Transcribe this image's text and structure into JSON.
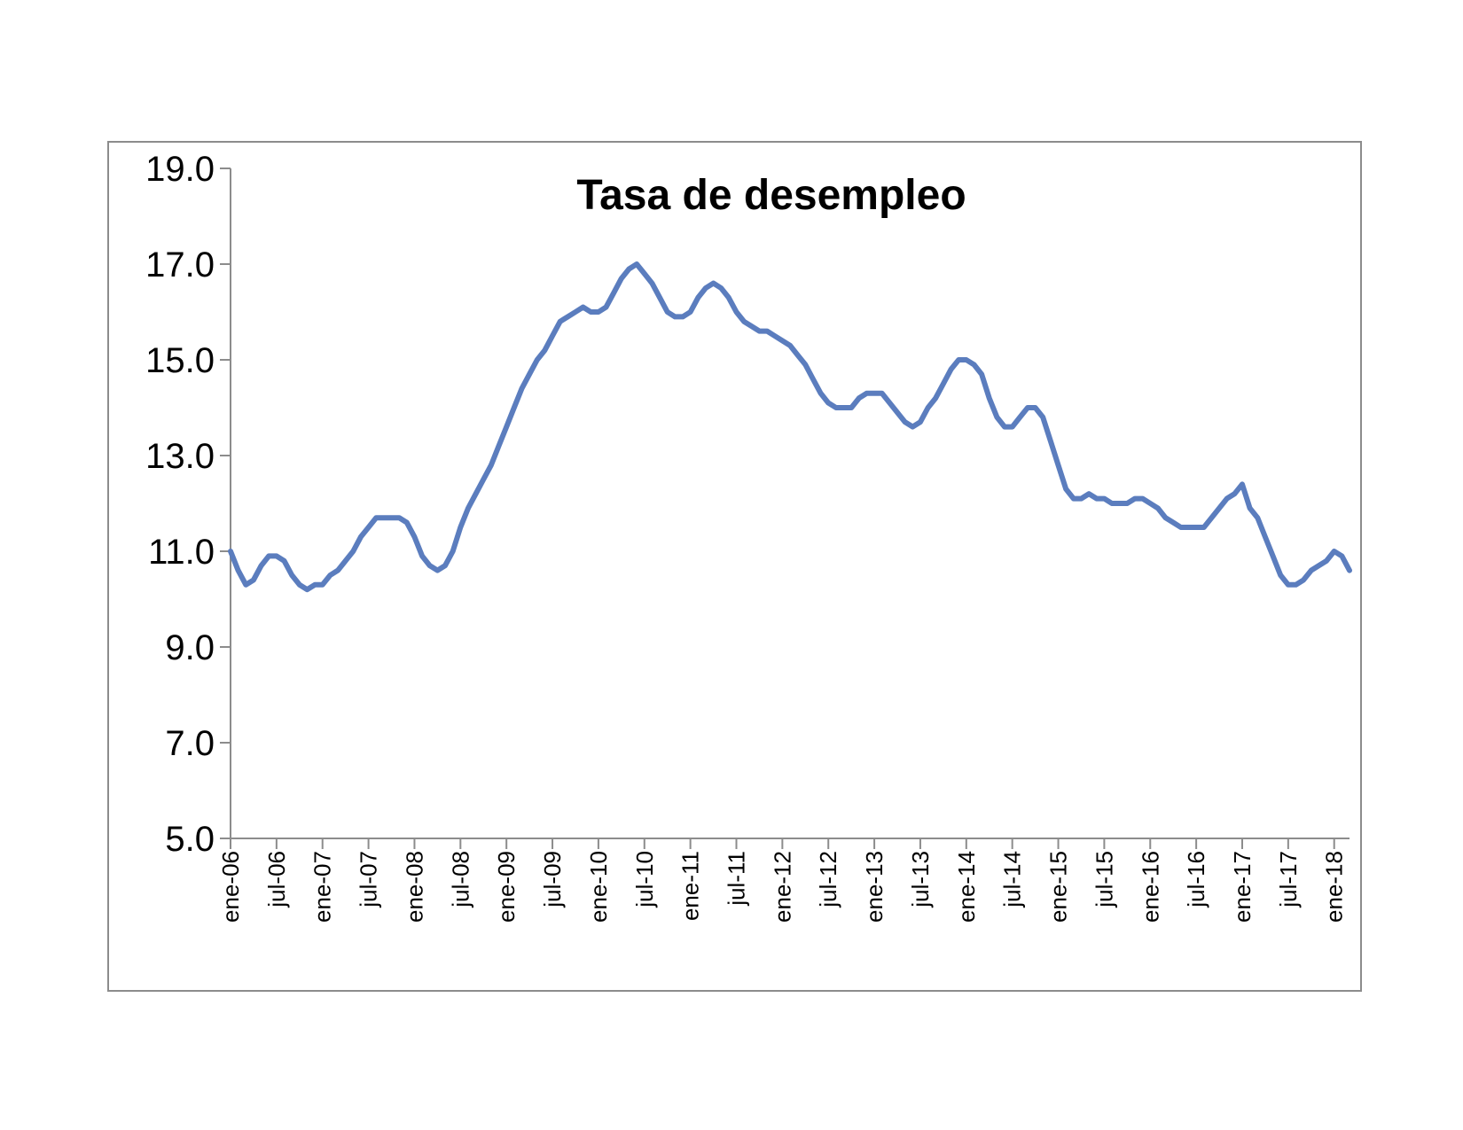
{
  "chart_data": {
    "type": "line",
    "title": "Tasa de desempleo",
    "xlabel": "",
    "ylabel": "",
    "ylim": [
      5,
      19
    ],
    "yticks": [
      "5.0",
      "7.0",
      "9.0",
      "11.0",
      "13.0",
      "15.0",
      "17.0",
      "19.0"
    ],
    "ytick_values": [
      5,
      7,
      9,
      11,
      13,
      15,
      17,
      19
    ],
    "xticks": [
      "ene-06",
      "jul-06",
      "ene-07",
      "jul-07",
      "ene-08",
      "jul-08",
      "ene-09",
      "jul-09",
      "ene-10",
      "jul-10",
      "ene-11",
      "jul-11",
      "ene-12",
      "jul-12",
      "ene-13",
      "jul-13",
      "ene-14",
      "jul-14",
      "ene-15",
      "jul-15",
      "ene-16",
      "jul-16",
      "ene-17",
      "jul-17",
      "ene-18"
    ],
    "x_start": "ene-06",
    "x_end": "mar-18",
    "grid": false,
    "legend": "none",
    "series": [
      {
        "color": "#5b7dbe",
        "points": [
          [
            "2006-01",
            11.0
          ],
          [
            "2006-02",
            10.6
          ],
          [
            "2006-03",
            10.3
          ],
          [
            "2006-04",
            10.4
          ],
          [
            "2006-05",
            10.7
          ],
          [
            "2006-06",
            10.9
          ],
          [
            "2006-07",
            10.9
          ],
          [
            "2006-08",
            10.8
          ],
          [
            "2006-09",
            10.5
          ],
          [
            "2006-10",
            10.3
          ],
          [
            "2006-11",
            10.2
          ],
          [
            "2006-12",
            10.3
          ],
          [
            "2007-01",
            10.3
          ],
          [
            "2007-02",
            10.5
          ],
          [
            "2007-03",
            10.6
          ],
          [
            "2007-04",
            10.8
          ],
          [
            "2007-05",
            11.0
          ],
          [
            "2007-06",
            11.3
          ],
          [
            "2007-07",
            11.5
          ],
          [
            "2007-08",
            11.7
          ],
          [
            "2007-09",
            11.7
          ],
          [
            "2007-10",
            11.7
          ],
          [
            "2007-11",
            11.7
          ],
          [
            "2007-12",
            11.6
          ],
          [
            "2008-01",
            11.3
          ],
          [
            "2008-02",
            10.9
          ],
          [
            "2008-03",
            10.7
          ],
          [
            "2008-04",
            10.6
          ],
          [
            "2008-05",
            10.7
          ],
          [
            "2008-06",
            11.0
          ],
          [
            "2008-07",
            11.5
          ],
          [
            "2008-08",
            11.9
          ],
          [
            "2008-09",
            12.2
          ],
          [
            "2008-10",
            12.5
          ],
          [
            "2008-11",
            12.8
          ],
          [
            "2008-12",
            13.2
          ],
          [
            "2009-01",
            13.6
          ],
          [
            "2009-02",
            14.0
          ],
          [
            "2009-03",
            14.4
          ],
          [
            "2009-04",
            14.7
          ],
          [
            "2009-05",
            15.0
          ],
          [
            "2009-06",
            15.2
          ],
          [
            "2009-07",
            15.5
          ],
          [
            "2009-08",
            15.8
          ],
          [
            "2009-09",
            15.9
          ],
          [
            "2009-10",
            16.0
          ],
          [
            "2009-11",
            16.1
          ],
          [
            "2009-12",
            16.0
          ],
          [
            "2010-01",
            16.0
          ],
          [
            "2010-02",
            16.1
          ],
          [
            "2010-03",
            16.4
          ],
          [
            "2010-04",
            16.7
          ],
          [
            "2010-05",
            16.9
          ],
          [
            "2010-06",
            17.0
          ],
          [
            "2010-07",
            16.8
          ],
          [
            "2010-08",
            16.6
          ],
          [
            "2010-09",
            16.3
          ],
          [
            "2010-10",
            16.0
          ],
          [
            "2010-11",
            15.9
          ],
          [
            "2010-12",
            15.9
          ],
          [
            "2011-01",
            16.0
          ],
          [
            "2011-02",
            16.3
          ],
          [
            "2011-03",
            16.5
          ],
          [
            "2011-04",
            16.6
          ],
          [
            "2011-05",
            16.5
          ],
          [
            "2011-06",
            16.3
          ],
          [
            "2011-07",
            16.0
          ],
          [
            "2011-08",
            15.8
          ],
          [
            "2011-09",
            15.7
          ],
          [
            "2011-10",
            15.6
          ],
          [
            "2011-11",
            15.6
          ],
          [
            "2011-12",
            15.5
          ],
          [
            "2012-01",
            15.4
          ],
          [
            "2012-02",
            15.3
          ],
          [
            "2012-03",
            15.1
          ],
          [
            "2012-04",
            14.9
          ],
          [
            "2012-05",
            14.6
          ],
          [
            "2012-06",
            14.3
          ],
          [
            "2012-07",
            14.1
          ],
          [
            "2012-08",
            14.0
          ],
          [
            "2012-09",
            14.0
          ],
          [
            "2012-10",
            14.0
          ],
          [
            "2012-11",
            14.2
          ],
          [
            "2012-12",
            14.3
          ],
          [
            "2013-01",
            14.3
          ],
          [
            "2013-02",
            14.3
          ],
          [
            "2013-03",
            14.1
          ],
          [
            "2013-04",
            13.9
          ],
          [
            "2013-05",
            13.7
          ],
          [
            "2013-06",
            13.6
          ],
          [
            "2013-07",
            13.7
          ],
          [
            "2013-08",
            14.0
          ],
          [
            "2013-09",
            14.2
          ],
          [
            "2013-10",
            14.5
          ],
          [
            "2013-11",
            14.8
          ],
          [
            "2013-12",
            15.0
          ],
          [
            "2014-01",
            15.0
          ],
          [
            "2014-02",
            14.9
          ],
          [
            "2014-03",
            14.7
          ],
          [
            "2014-04",
            14.2
          ],
          [
            "2014-05",
            13.8
          ],
          [
            "2014-06",
            13.6
          ],
          [
            "2014-07",
            13.6
          ],
          [
            "2014-08",
            13.8
          ],
          [
            "2014-09",
            14.0
          ],
          [
            "2014-10",
            14.0
          ],
          [
            "2014-11",
            13.8
          ],
          [
            "2014-12",
            13.3
          ],
          [
            "2015-01",
            12.8
          ],
          [
            "2015-02",
            12.3
          ],
          [
            "2015-03",
            12.1
          ],
          [
            "2015-04",
            12.1
          ],
          [
            "2015-05",
            12.2
          ],
          [
            "2015-06",
            12.1
          ],
          [
            "2015-07",
            12.1
          ],
          [
            "2015-08",
            12.0
          ],
          [
            "2015-09",
            12.0
          ],
          [
            "2015-10",
            12.0
          ],
          [
            "2015-11",
            12.1
          ],
          [
            "2015-12",
            12.1
          ],
          [
            "2016-01",
            12.0
          ],
          [
            "2016-02",
            11.9
          ],
          [
            "2016-03",
            11.7
          ],
          [
            "2016-04",
            11.6
          ],
          [
            "2016-05",
            11.5
          ],
          [
            "2016-06",
            11.5
          ],
          [
            "2016-07",
            11.5
          ],
          [
            "2016-08",
            11.5
          ],
          [
            "2016-09",
            11.7
          ],
          [
            "2016-10",
            11.9
          ],
          [
            "2016-11",
            12.1
          ],
          [
            "2016-12",
            12.2
          ],
          [
            "2017-01",
            12.4
          ],
          [
            "2017-02",
            11.9
          ],
          [
            "2017-03",
            11.7
          ],
          [
            "2017-04",
            11.3
          ],
          [
            "2017-05",
            10.9
          ],
          [
            "2017-06",
            10.5
          ],
          [
            "2017-07",
            10.3
          ],
          [
            "2017-08",
            10.3
          ],
          [
            "2017-09",
            10.4
          ],
          [
            "2017-10",
            10.6
          ],
          [
            "2017-11",
            10.7
          ],
          [
            "2017-12",
            10.8
          ],
          [
            "2018-01",
            11.0
          ],
          [
            "2018-02",
            10.9
          ],
          [
            "2018-03",
            10.6
          ]
        ]
      }
    ]
  }
}
